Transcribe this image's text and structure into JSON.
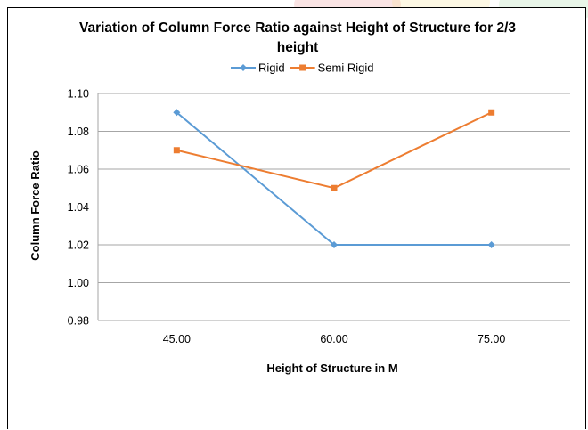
{
  "chart_data": {
    "type": "line",
    "title_line1": "Variation of Column Force Ratio against Height of Structure for  2/3",
    "title_line2": "height",
    "xlabel": "Height of Structure in M",
    "ylabel": "Column Force Ratio",
    "categories": [
      "45.00",
      "60.00",
      "75.00"
    ],
    "ylim": [
      0.98,
      1.1
    ],
    "yticks": [
      "1.10",
      "1.08",
      "1.06",
      "1.04",
      "1.02",
      "1.00",
      "0.98"
    ],
    "ytick_values": [
      1.1,
      1.08,
      1.06,
      1.04,
      1.02,
      1.0,
      0.98
    ],
    "grid": true,
    "legend_position": "top",
    "series": [
      {
        "name": "Rigid",
        "values": [
          1.09,
          1.02,
          1.02
        ],
        "color": "#5b9bd5",
        "marker": "diamond"
      },
      {
        "name": "Semi Rigid",
        "values": [
          1.07,
          1.05,
          1.09
        ],
        "color": "#ed7d31",
        "marker": "square"
      }
    ]
  },
  "colors": {
    "gridline": "#a6a6a6",
    "axis": "#a6a6a6",
    "watermark_red": "#e36c6c",
    "watermark_yellow": "#f2d66b",
    "watermark_green": "#7fc97f"
  }
}
